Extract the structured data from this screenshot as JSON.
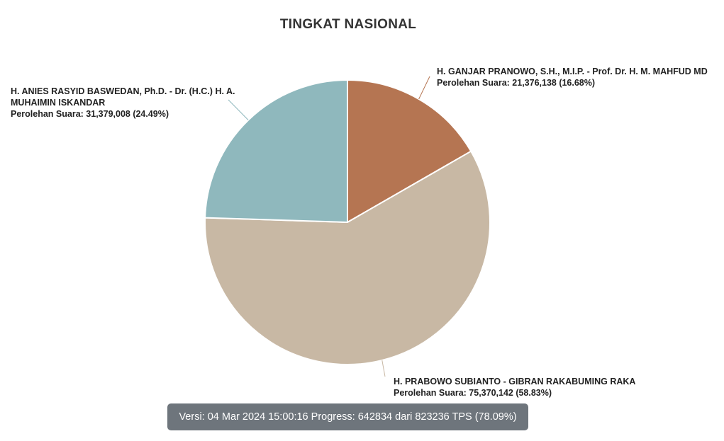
{
  "chart_data": {
    "type": "pie",
    "title": "TINGKAT NASIONAL",
    "series": [
      {
        "name": "H. GANJAR PRANOWO, S.H., M.I.P. - Prof. Dr. H. M. MAHFUD MD",
        "vote_label": "Perolehan Suara: 21,376,138 (16.68%)",
        "value": 21376138,
        "percent": 16.68,
        "color": "#b57552"
      },
      {
        "name": "H. PRABOWO SUBIANTO - GIBRAN RAKABUMING RAKA",
        "vote_label": "Perolehan Suara: 75,370,142 (58.83%)",
        "value": 75370142,
        "percent": 58.83,
        "color": "#c8b8a4"
      },
      {
        "name": "H. ANIES RASYID BASWEDAN, Ph.D. - Dr. (H.C.) H. A. MUHAIMIN ISKANDAR",
        "vote_label": "Perolehan Suara: 31,379,008 (24.49%)",
        "value": 31379008,
        "percent": 24.49,
        "color": "#8fb8bd"
      }
    ]
  },
  "footer": {
    "version_text": "Versi: 04 Mar 2024 15:00:16 Progress: 642834 dari 823236 TPS (78.09%)"
  }
}
